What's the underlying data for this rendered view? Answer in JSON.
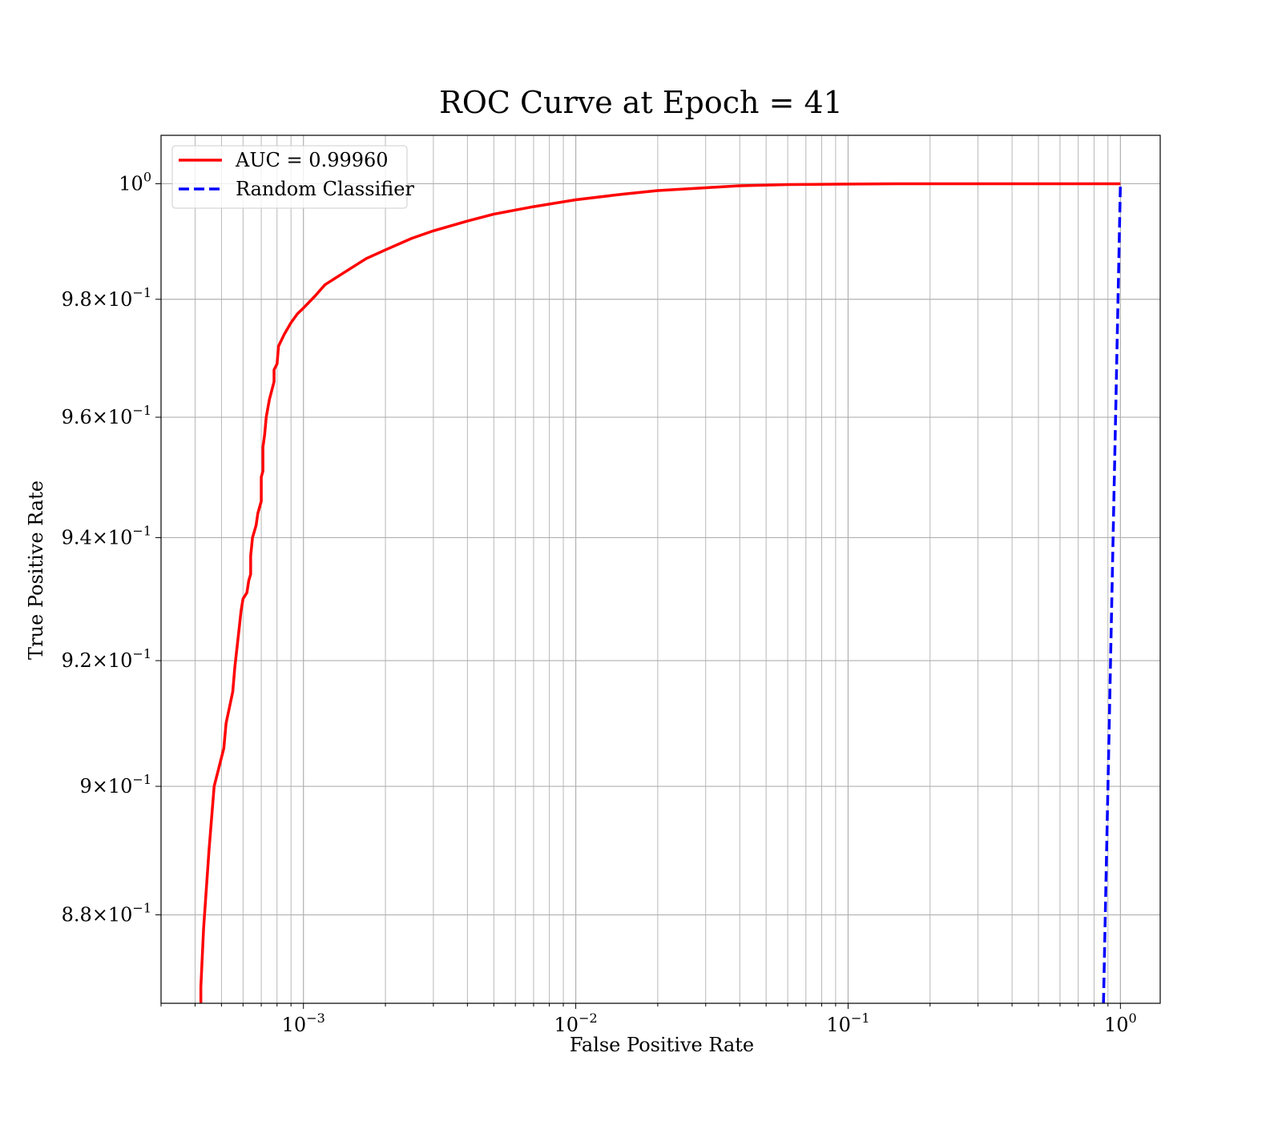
{
  "chart_data": {
    "type": "line",
    "title": "ROC Curve at Epoch = 41",
    "xlabel": "False Positive Rate",
    "ylabel": "True Positive Rate",
    "xscale": "log",
    "yscale": "log",
    "xlim": [
      0.0003,
      1.4
    ],
    "ylim": [
      0.8665,
      1.0085
    ],
    "grid": "both major and minor",
    "legend_position": "top-left",
    "x_ticks": [
      {
        "value": 0.001,
        "base": "10",
        "exp": "−3"
      },
      {
        "value": 0.01,
        "base": "10",
        "exp": "−2"
      },
      {
        "value": 0.1,
        "base": "10",
        "exp": "−1"
      },
      {
        "value": 1,
        "base": "10",
        "exp": "0"
      }
    ],
    "y_ticks": [
      {
        "value": 1.0,
        "mant": "",
        "base": "10",
        "exp": "0"
      },
      {
        "value": 0.98,
        "mant": "9.8",
        "base": "10",
        "exp": "−1"
      },
      {
        "value": 0.96,
        "mant": "9.6",
        "base": "10",
        "exp": "−1"
      },
      {
        "value": 0.94,
        "mant": "9.4",
        "base": "10",
        "exp": "−1"
      },
      {
        "value": 0.92,
        "mant": "9.2",
        "base": "10",
        "exp": "−1"
      },
      {
        "value": 0.9,
        "mant": "9",
        "base": "10",
        "exp": "−1"
      },
      {
        "value": 0.88,
        "mant": "8.8",
        "base": "10",
        "exp": "−1"
      }
    ],
    "series": [
      {
        "name": "AUC = 0.99960",
        "color": "#ff0000",
        "style": "solid",
        "points": [
          [
            0.00042,
            0.8665
          ],
          [
            0.00042,
            0.869
          ],
          [
            0.00043,
            0.878
          ],
          [
            0.00045,
            0.89
          ],
          [
            0.00047,
            0.9
          ],
          [
            0.00051,
            0.906
          ],
          [
            0.00052,
            0.91
          ],
          [
            0.00055,
            0.915
          ],
          [
            0.00056,
            0.919
          ],
          [
            0.00058,
            0.925
          ],
          [
            0.00059,
            0.928
          ],
          [
            0.0006,
            0.93
          ],
          [
            0.00062,
            0.931
          ],
          [
            0.00063,
            0.933
          ],
          [
            0.00064,
            0.934
          ],
          [
            0.00064,
            0.937
          ],
          [
            0.00065,
            0.94
          ],
          [
            0.00066,
            0.941
          ],
          [
            0.00067,
            0.942
          ],
          [
            0.00068,
            0.944
          ],
          [
            0.00069,
            0.945
          ],
          [
            0.0007,
            0.946
          ],
          [
            0.0007,
            0.95
          ],
          [
            0.00071,
            0.951
          ],
          [
            0.00071,
            0.955
          ],
          [
            0.00072,
            0.957
          ],
          [
            0.00073,
            0.96
          ],
          [
            0.00075,
            0.963
          ],
          [
            0.00077,
            0.965
          ],
          [
            0.00078,
            0.966
          ],
          [
            0.00078,
            0.968
          ],
          [
            0.0008,
            0.969
          ],
          [
            0.00081,
            0.972
          ],
          [
            0.00085,
            0.974
          ],
          [
            0.0009,
            0.976
          ],
          [
            0.00095,
            0.9775
          ],
          [
            0.001,
            0.9785
          ],
          [
            0.0011,
            0.9805
          ],
          [
            0.0012,
            0.9825
          ],
          [
            0.0014,
            0.9845
          ],
          [
            0.0017,
            0.987
          ],
          [
            0.002,
            0.9885
          ],
          [
            0.0025,
            0.9905
          ],
          [
            0.003,
            0.9918
          ],
          [
            0.004,
            0.9935
          ],
          [
            0.005,
            0.9947
          ],
          [
            0.007,
            0.996
          ],
          [
            0.01,
            0.9972
          ],
          [
            0.015,
            0.9982
          ],
          [
            0.02,
            0.9988
          ],
          [
            0.03,
            0.9993
          ],
          [
            0.04,
            0.99965
          ],
          [
            0.06,
            0.99985
          ],
          [
            0.1,
            0.99995
          ],
          [
            0.15,
            1.0
          ],
          [
            0.5,
            1.0
          ],
          [
            1.0,
            1.0
          ]
        ]
      },
      {
        "name": "Random Classifier",
        "color": "#0000ff",
        "style": "dashed",
        "points": [
          [
            0.8665,
            0.8665
          ],
          [
            0.9,
            0.9
          ],
          [
            0.95,
            0.95
          ],
          [
            1.0,
            1.0
          ]
        ]
      }
    ]
  }
}
